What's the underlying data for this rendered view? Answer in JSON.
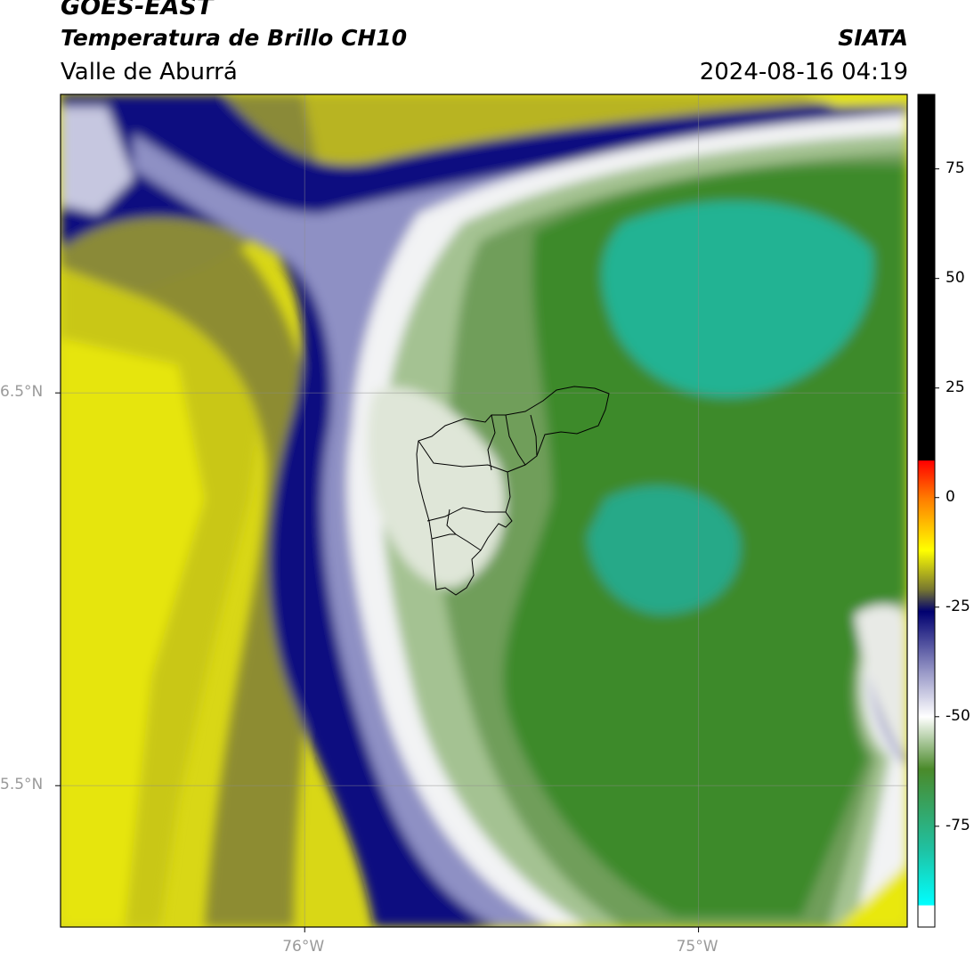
{
  "header": {
    "satellite": "GOES-EAST",
    "product": "Temperatura de Brillo CH10",
    "region": "Valle de Aburrá",
    "agency": "SIATA",
    "datetime": "2024-08-16 04:19"
  },
  "map": {
    "lat_ticks": [
      {
        "value": 6.5,
        "label": "6.5°N"
      },
      {
        "value": 5.5,
        "label": "5.5°N"
      }
    ],
    "lon_ticks": [
      {
        "value": -76,
        "label": "76°W"
      },
      {
        "value": -75,
        "label": "75°W"
      }
    ],
    "extent": {
      "lon_min": -76.62,
      "lon_max": -74.47,
      "lat_min": 5.14,
      "lat_max": 7.26
    }
  },
  "colorbar": {
    "range": [
      -98,
      92
    ],
    "ticks": [
      {
        "value": 75,
        "label": "75"
      },
      {
        "value": 50,
        "label": "50"
      },
      {
        "value": 25,
        "label": "25"
      },
      {
        "value": 0,
        "label": "0"
      },
      {
        "value": -25,
        "label": "-25"
      },
      {
        "value": -50,
        "label": "-50"
      },
      {
        "value": -75,
        "label": "-75"
      }
    ],
    "stops": [
      {
        "value": 92,
        "color": "#000000"
      },
      {
        "value": 8.5,
        "color": "#000000"
      },
      {
        "value": 8.4,
        "color": "#ff0000"
      },
      {
        "value": 0,
        "color": "#ff7a00"
      },
      {
        "value": -12,
        "color": "#ffff00"
      },
      {
        "value": -21,
        "color": "#777730"
      },
      {
        "value": -26,
        "color": "#000070"
      },
      {
        "value": -40,
        "color": "#9a9ac8"
      },
      {
        "value": -50,
        "color": "#ffffff"
      },
      {
        "value": -62,
        "color": "#4a8a2a"
      },
      {
        "value": -80,
        "color": "#20c0a0"
      },
      {
        "value": -93,
        "color": "#00ffff"
      },
      {
        "value": -93.1,
        "color": "#ffffff"
      },
      {
        "value": -98,
        "color": "#ffffff"
      }
    ]
  },
  "palette": {
    "deep_green": "#3f8a2c",
    "teal": "#23b393",
    "light_green": "#a9c595",
    "white": "#f5f7f2",
    "lavender": "#c6c7e0",
    "navy": "#0e0f7a",
    "olive": "#8f8f2e",
    "yellow": "#e3e20f"
  }
}
